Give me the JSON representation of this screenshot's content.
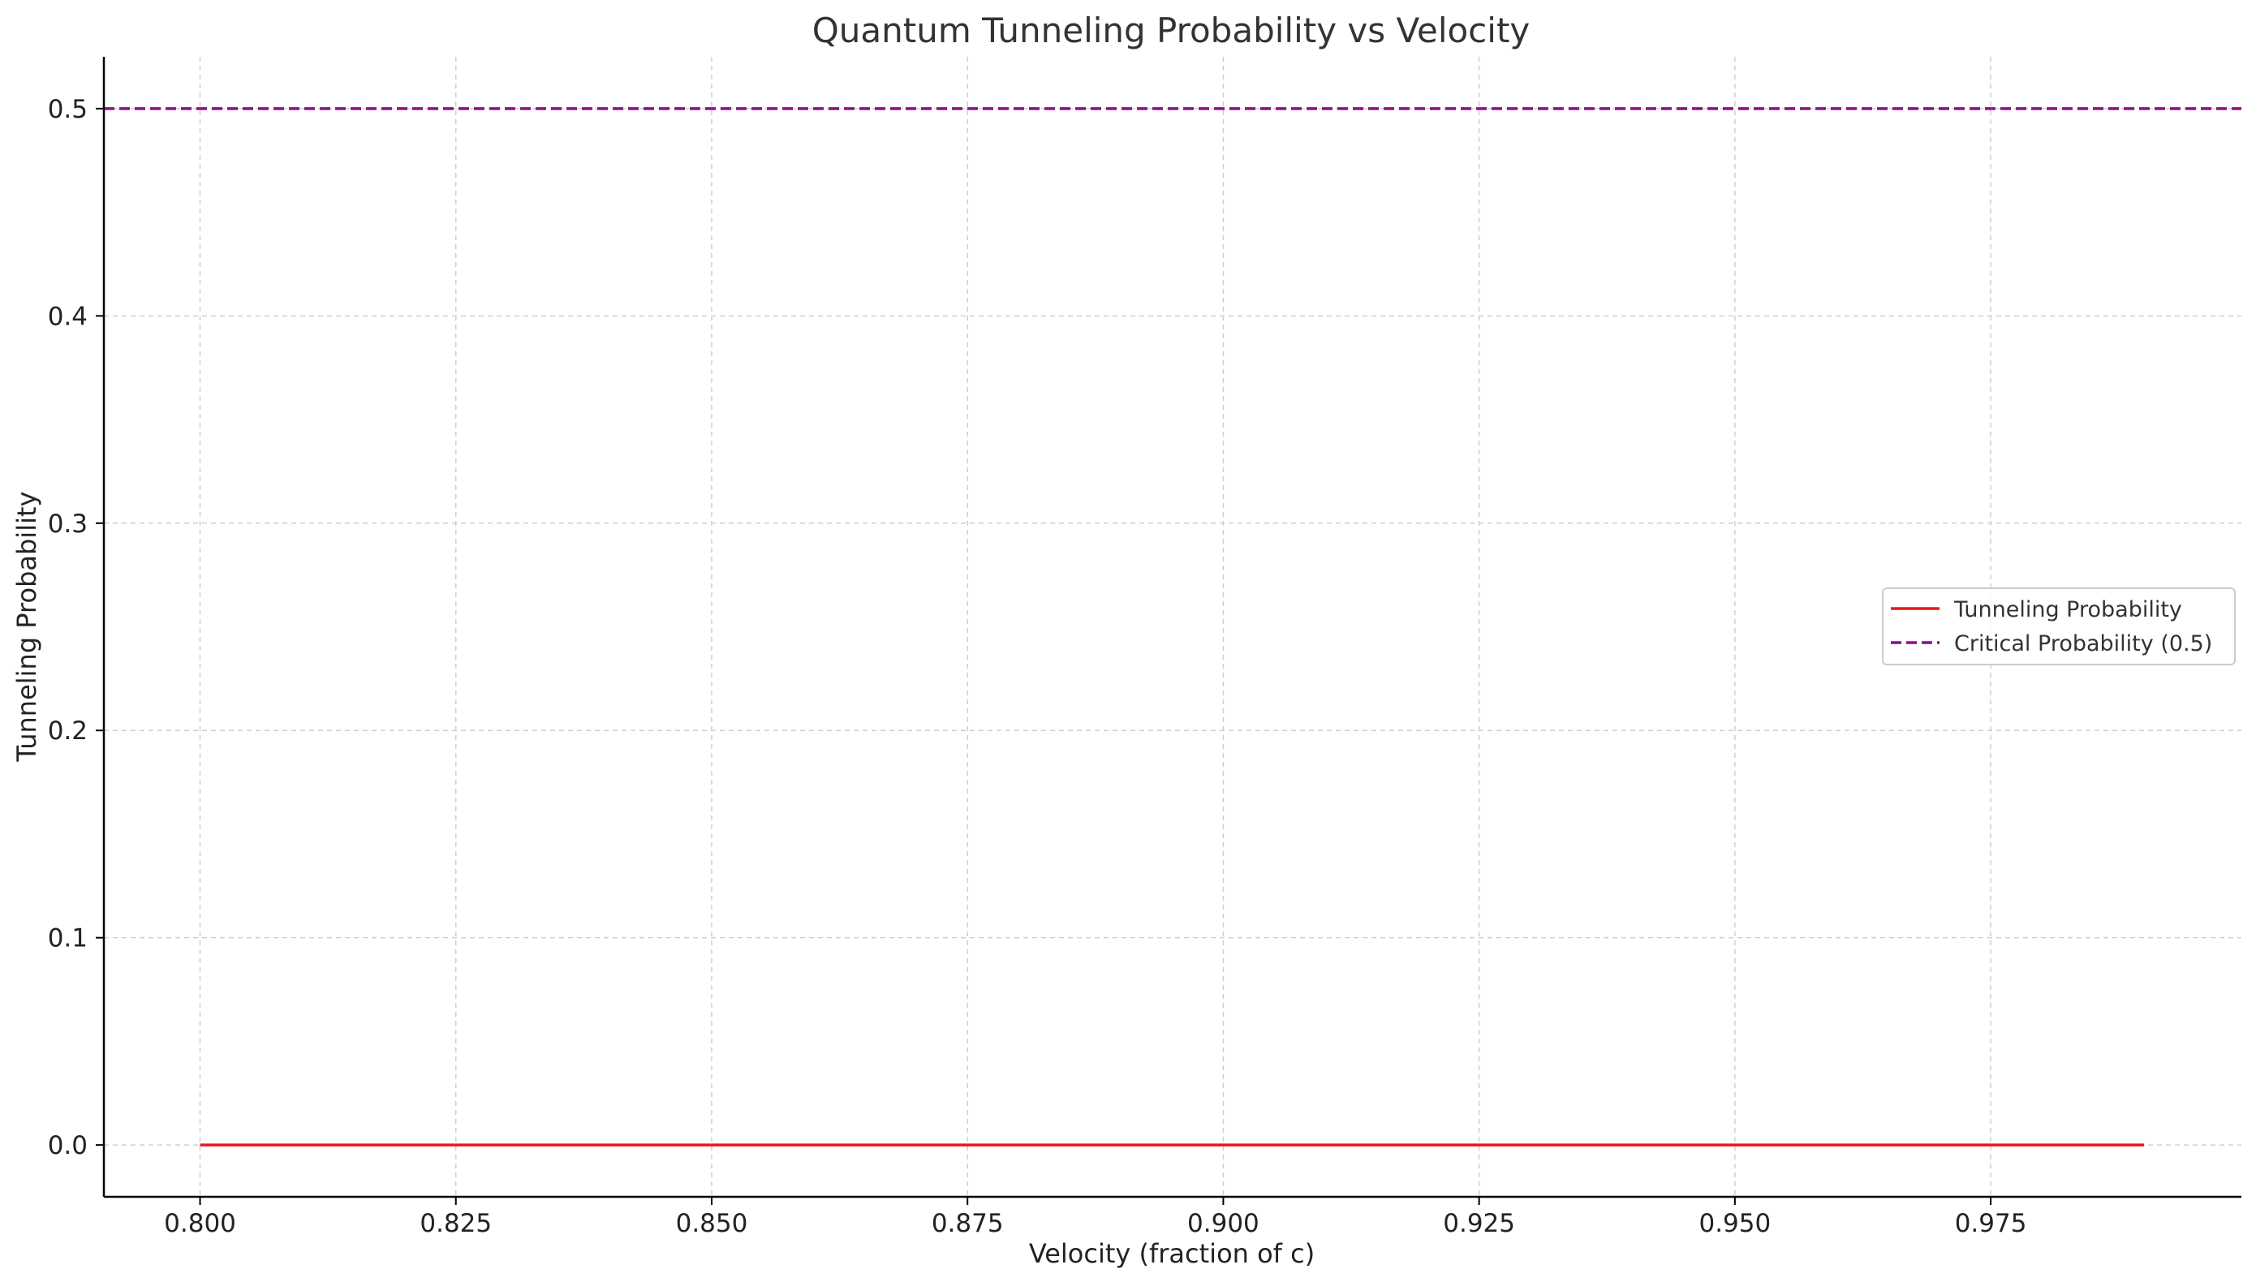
{
  "chart_data": {
    "type": "line",
    "title": "Quantum Tunneling Probability vs Velocity",
    "xlabel": "Velocity (fraction of c)",
    "ylabel": "Tunneling Probability",
    "xlim": [
      0.7906,
      0.9995
    ],
    "ylim": [
      -0.025,
      0.525
    ],
    "xticks": [
      0.8,
      0.825,
      0.85,
      0.875,
      0.9,
      0.925,
      0.95,
      0.975
    ],
    "xtick_labels": [
      "0.800",
      "0.825",
      "0.850",
      "0.875",
      "0.900",
      "0.925",
      "0.950",
      "0.975"
    ],
    "yticks": [
      0.0,
      0.1,
      0.2,
      0.3,
      0.4,
      0.5
    ],
    "ytick_labels": [
      "0.0",
      "0.1",
      "0.2",
      "0.3",
      "0.4",
      "0.5"
    ],
    "grid": true,
    "legend_position": "center-right",
    "series": [
      {
        "name": "Tunneling Probability",
        "color": "#e8191c",
        "style": "solid",
        "x": [
          0.8,
          0.81,
          0.82,
          0.83,
          0.84,
          0.85,
          0.86,
          0.87,
          0.88,
          0.89,
          0.9,
          0.91,
          0.92,
          0.93,
          0.94,
          0.95,
          0.96,
          0.97,
          0.98,
          0.99
        ],
        "y": [
          0.0,
          0.0,
          0.0,
          0.0,
          0.0,
          0.0,
          0.0,
          0.0,
          0.0,
          0.0,
          0.0,
          0.0,
          0.0,
          0.0,
          0.0,
          0.0,
          0.0,
          0.0,
          0.0,
          0.0
        ]
      },
      {
        "name": "Critical Probability (0.5)",
        "color": "#8b0d8b",
        "style": "dashed",
        "hline": 0.5
      }
    ]
  }
}
